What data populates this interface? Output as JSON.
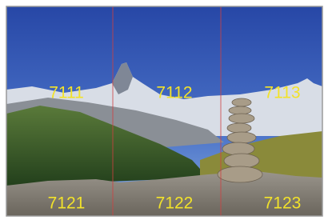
{
  "tiles": {
    "rows": [
      [
        "7111",
        "7112",
        "7113"
      ],
      [
        "7121",
        "7122",
        "7123"
      ]
    ]
  }
}
